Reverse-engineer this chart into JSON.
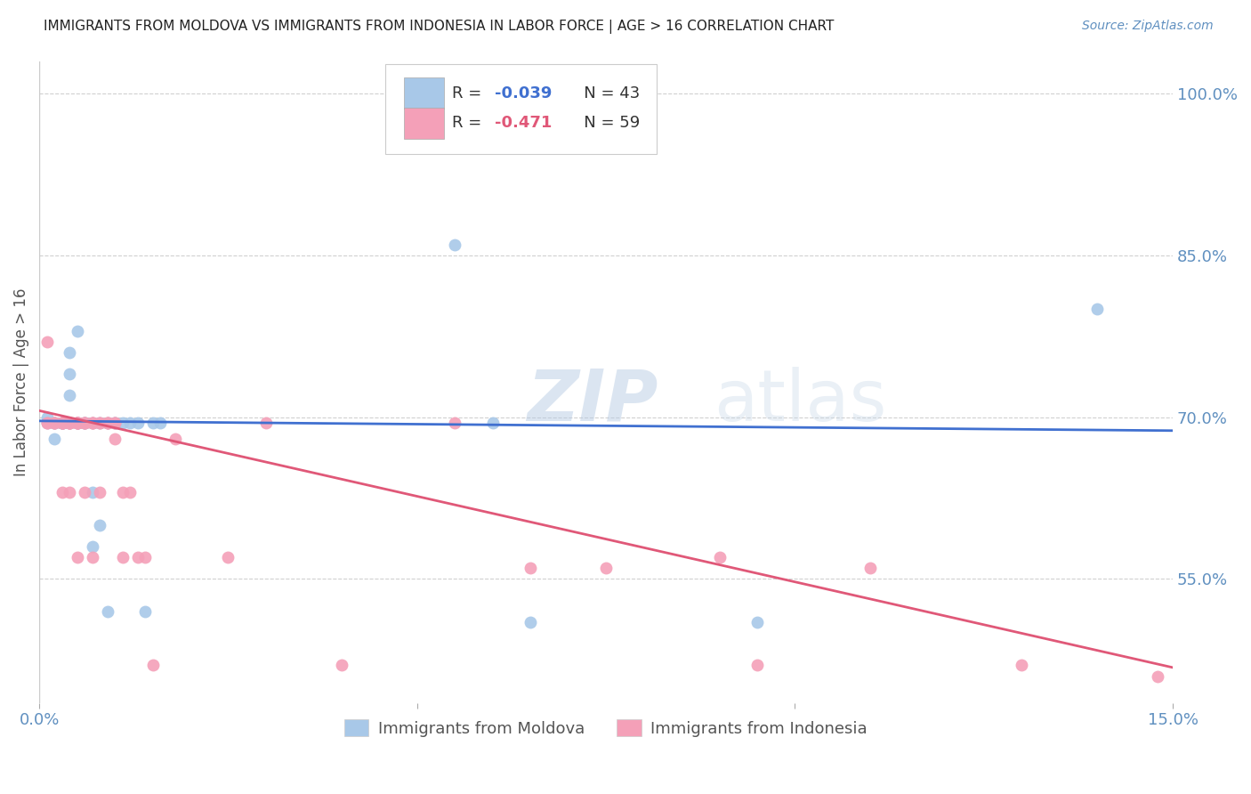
{
  "title": "IMMIGRANTS FROM MOLDOVA VS IMMIGRANTS FROM INDONESIA IN LABOR FORCE | AGE > 16 CORRELATION CHART",
  "source": "Source: ZipAtlas.com",
  "ylabel": "In Labor Force | Age > 16",
  "right_yticks": [
    "100.0%",
    "85.0%",
    "70.0%",
    "55.0%"
  ],
  "right_ytick_vals": [
    1.0,
    0.85,
    0.7,
    0.55
  ],
  "xlim": [
    0.0,
    0.15
  ],
  "ylim": [
    0.435,
    1.03
  ],
  "moldova_color": "#a8c8e8",
  "indonesia_color": "#f4a0b8",
  "moldova_line_color": "#4070d0",
  "indonesia_line_color": "#e05878",
  "moldova_scatter_x": [
    0.001,
    0.001,
    0.002,
    0.002,
    0.002,
    0.003,
    0.003,
    0.003,
    0.003,
    0.003,
    0.003,
    0.004,
    0.004,
    0.004,
    0.004,
    0.004,
    0.005,
    0.005,
    0.005,
    0.005,
    0.006,
    0.006,
    0.006,
    0.007,
    0.007,
    0.007,
    0.008,
    0.008,
    0.009,
    0.009,
    0.01,
    0.01,
    0.011,
    0.012,
    0.013,
    0.014,
    0.015,
    0.016,
    0.055,
    0.06,
    0.065,
    0.095,
    0.14
  ],
  "moldova_scatter_y": [
    0.7,
    0.695,
    0.695,
    0.68,
    0.695,
    0.695,
    0.695,
    0.695,
    0.695,
    0.695,
    0.695,
    0.74,
    0.76,
    0.695,
    0.695,
    0.72,
    0.695,
    0.695,
    0.695,
    0.78,
    0.695,
    0.695,
    0.695,
    0.58,
    0.63,
    0.695,
    0.695,
    0.6,
    0.695,
    0.52,
    0.695,
    0.695,
    0.695,
    0.695,
    0.695,
    0.52,
    0.695,
    0.695,
    0.86,
    0.695,
    0.51,
    0.51,
    0.8
  ],
  "indonesia_scatter_x": [
    0.001,
    0.001,
    0.001,
    0.002,
    0.002,
    0.002,
    0.003,
    0.003,
    0.003,
    0.003,
    0.003,
    0.003,
    0.004,
    0.004,
    0.004,
    0.004,
    0.004,
    0.004,
    0.005,
    0.005,
    0.005,
    0.005,
    0.005,
    0.005,
    0.006,
    0.006,
    0.006,
    0.006,
    0.007,
    0.007,
    0.007,
    0.007,
    0.008,
    0.008,
    0.008,
    0.009,
    0.009,
    0.009,
    0.01,
    0.01,
    0.01,
    0.011,
    0.011,
    0.012,
    0.013,
    0.014,
    0.015,
    0.018,
    0.025,
    0.03,
    0.04,
    0.055,
    0.065,
    0.075,
    0.09,
    0.095,
    0.11,
    0.13,
    0.148
  ],
  "indonesia_scatter_y": [
    0.77,
    0.695,
    0.695,
    0.695,
    0.695,
    0.695,
    0.695,
    0.695,
    0.695,
    0.695,
    0.695,
    0.63,
    0.695,
    0.695,
    0.695,
    0.695,
    0.695,
    0.63,
    0.695,
    0.695,
    0.695,
    0.695,
    0.695,
    0.57,
    0.695,
    0.695,
    0.695,
    0.63,
    0.695,
    0.695,
    0.695,
    0.57,
    0.695,
    0.695,
    0.63,
    0.695,
    0.695,
    0.695,
    0.695,
    0.695,
    0.68,
    0.63,
    0.57,
    0.63,
    0.57,
    0.57,
    0.47,
    0.68,
    0.57,
    0.695,
    0.47,
    0.695,
    0.56,
    0.56,
    0.57,
    0.47,
    0.56,
    0.47,
    0.46
  ],
  "moldova_trend_x": [
    0.0,
    0.15
  ],
  "moldova_trend_y": [
    0.6965,
    0.6875
  ],
  "indonesia_trend_x": [
    0.0,
    0.15
  ],
  "indonesia_trend_y": [
    0.706,
    0.468
  ],
  "watermark_zip": "ZIP",
  "watermark_atlas": "atlas",
  "background_color": "#ffffff",
  "grid_color": "#d0d0d0",
  "title_color": "#222222",
  "axis_color": "#6090c0",
  "legend_moldova_r": "-0.039",
  "legend_moldova_n": "43",
  "legend_indonesia_r": "-0.471",
  "legend_indonesia_n": "59"
}
